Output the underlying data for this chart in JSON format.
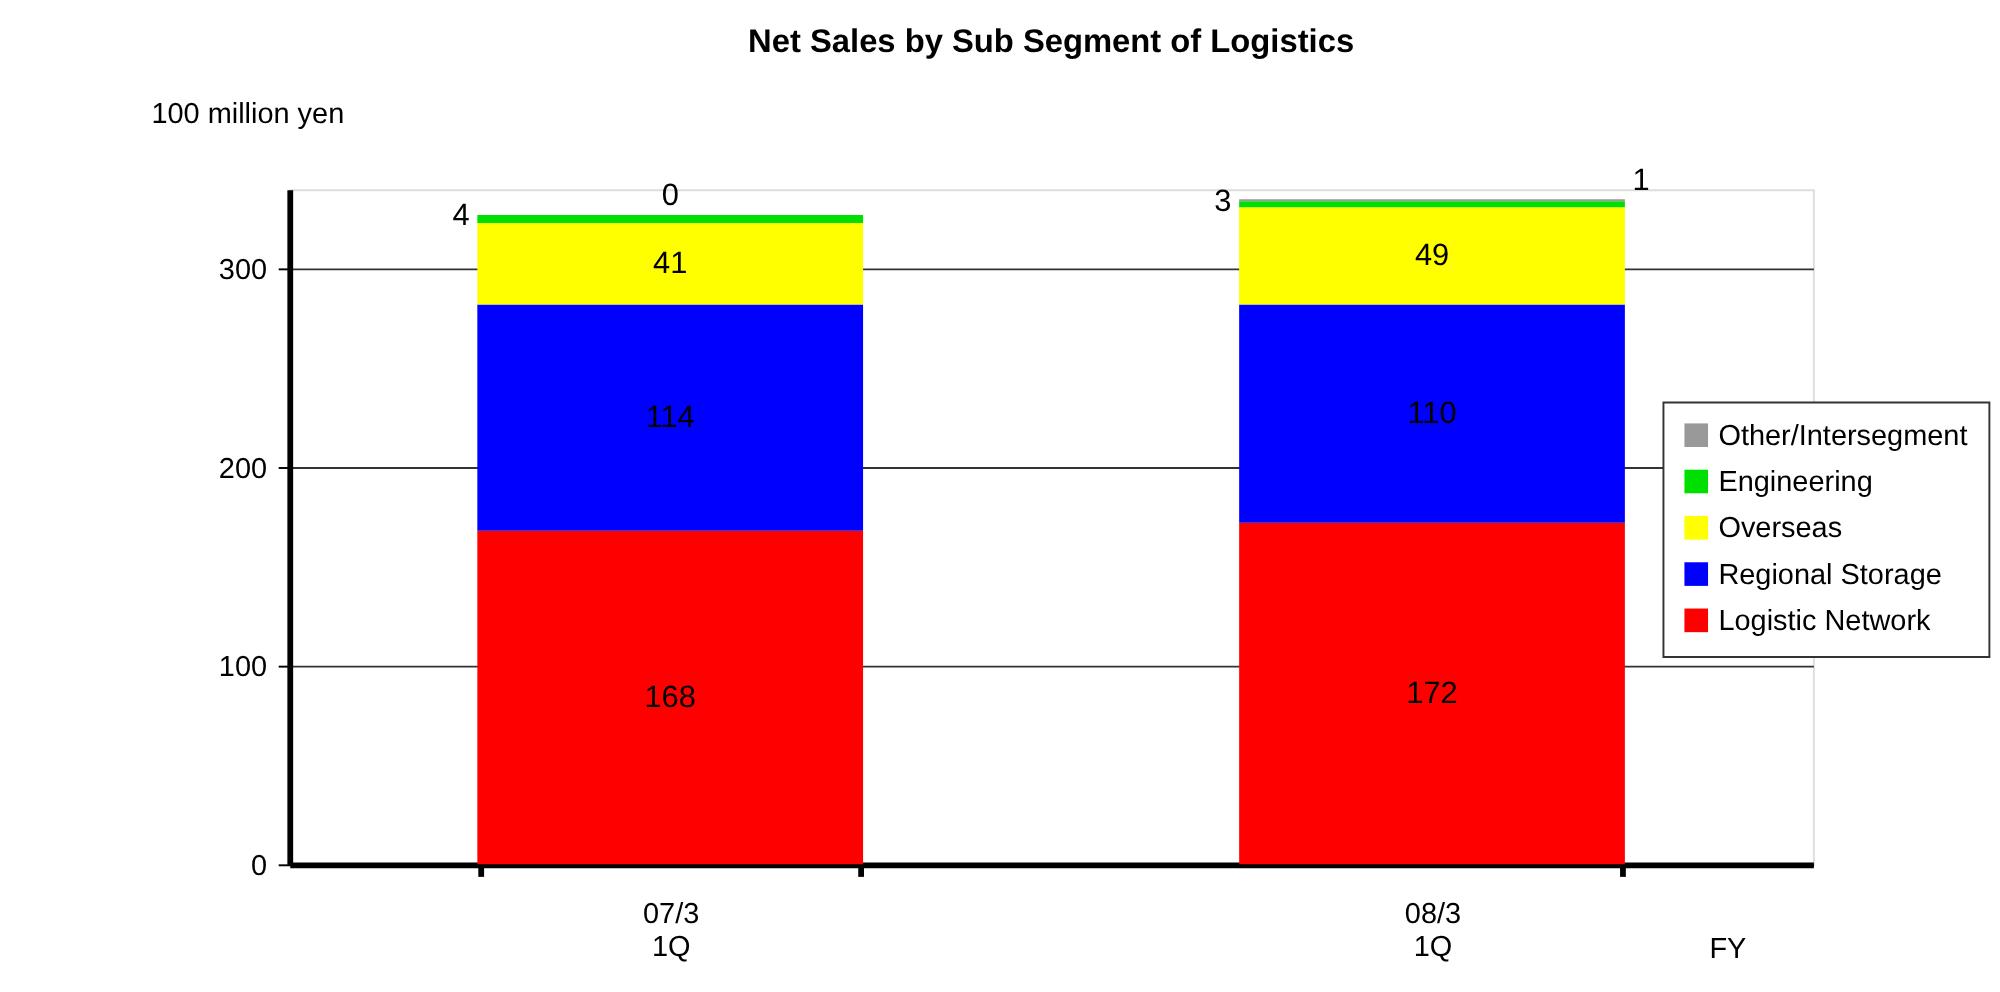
{
  "chart_data": {
    "type": "bar",
    "title": "Net Sales by Sub Segment of Logistics",
    "ylabel": "100 million yen",
    "xlabel": "FY",
    "categories": [
      "07/3\n1Q",
      "08/3\n1Q"
    ],
    "stacked": true,
    "data_labels": true,
    "grid": "y",
    "legend": "right",
    "ylim": [
      0,
      340
    ],
    "yticks": [
      0,
      100,
      200,
      300
    ],
    "series": [
      {
        "name": "Logistic Network",
        "color": "#ff0000",
        "values": [
          168,
          172
        ]
      },
      {
        "name": "Regional Storage",
        "color": "#0000ff",
        "values": [
          114,
          110
        ]
      },
      {
        "name": "Overseas",
        "color": "#ffff00",
        "values": [
          41,
          49
        ]
      },
      {
        "name": "Engineering",
        "color": "#00e000",
        "values": [
          4,
          3
        ]
      },
      {
        "name": "Other/Intersegment",
        "color": "#999999",
        "values": [
          0,
          1
        ]
      }
    ]
  }
}
